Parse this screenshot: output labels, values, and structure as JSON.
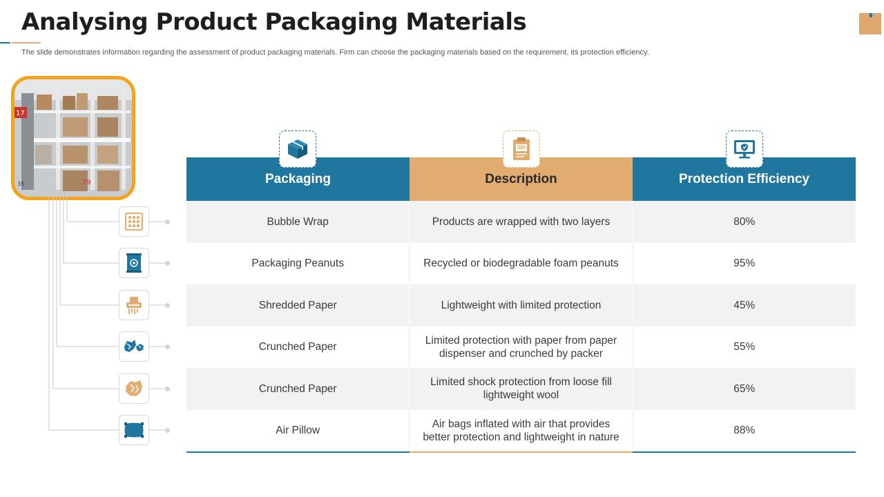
{
  "title": "Analysing Product Packaging Materials",
  "subtitle": "The slide demonstrates information regarding the assessment of product packaging materials. Firm can choose the packaging materials based on the requirement,  its protection efficiency.",
  "colors": {
    "blue": "#1f77a0",
    "tan": "#e2ab6f",
    "orange": "#f4a41a"
  },
  "photo": {
    "label_a": "17",
    "label_b": "35",
    "label_c": "79"
  },
  "table": {
    "headers": [
      "Packaging",
      "Description",
      "Protection Efficiency"
    ],
    "header_icons": [
      "box-icon",
      "clipboard-icon",
      "monitor-shield-icon"
    ],
    "rows": [
      {
        "packaging": "Bubble Wrap",
        "description": "Products are wrapped with two layers",
        "efficiency": "80%",
        "icon": "bubble-wrap-icon"
      },
      {
        "packaging": "Packaging Peanuts",
        "description": "Recycled or biodegradable foam peanuts",
        "efficiency": "95%",
        "icon": "peanuts-bag-icon"
      },
      {
        "packaging": "Shredded Paper",
        "description": "Lightweight with limited protection",
        "efficiency": "45%",
        "icon": "shredder-icon"
      },
      {
        "packaging": "Crunched Paper",
        "description": "Limited protection with paper from paper dispenser and crunched by packer",
        "efficiency": "55%",
        "icon": "crumpled-paper-icon"
      },
      {
        "packaging": "Crunched Paper",
        "description": "Limited shock protection from loose fill lightweight wool",
        "efficiency": "65%",
        "icon": "crumpled-paper-icon"
      },
      {
        "packaging": "Air Pillow",
        "description": "Air bags inflated with air that provides better protection and lightweight in nature",
        "efficiency": "88%",
        "icon": "air-pillow-icon"
      }
    ]
  }
}
